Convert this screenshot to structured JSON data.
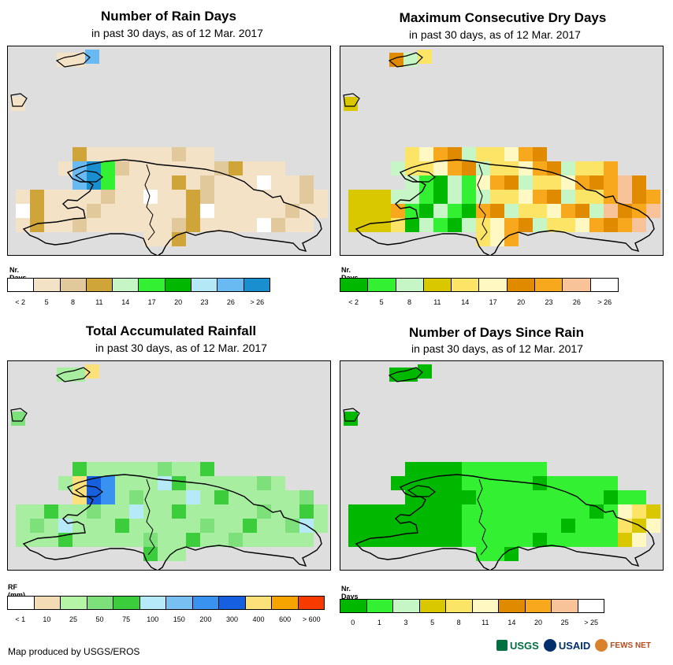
{
  "panels": [
    {
      "title": "Number of Rain Days",
      "subtitle": "in past 30 days, as of 12 Mar. 2017",
      "legend_title": "Nr. Days",
      "legend_labels": [
        "< 2",
        "5",
        "8",
        "11",
        "14",
        "17",
        "20",
        "23",
        "26",
        "> 26"
      ],
      "legend_colors": [
        "#ffffff",
        "#f3e2c6",
        "#e2c99b",
        "#cfa53a",
        "#c6f5c6",
        "#33f033",
        "#00b800",
        "#b5e8f6",
        "#69baf2",
        "#1a8fd0"
      ],
      "land_color": "#e6cfa3"
    },
    {
      "title": "Maximum Consecutive Dry Days",
      "subtitle": "in past 30 days, as of 12 Mar. 2017",
      "legend_title": "Nr. Days",
      "legend_labels": [
        "< 2",
        "5",
        "8",
        "11",
        "14",
        "17",
        "20",
        "23",
        "26",
        "> 26"
      ],
      "legend_colors": [
        "#00b800",
        "#33f033",
        "#c6f5c6",
        "#d9c800",
        "#fce566",
        "#fff8c2",
        "#e08a00",
        "#f7a81c",
        "#f9c39a",
        "#ffffff"
      ],
      "land_color": "#fce566"
    },
    {
      "title": "Total Accumulated Rainfall",
      "subtitle": "in past 30 days, as of 12 Mar. 2017",
      "legend_title": "RF (mm)",
      "legend_labels": [
        "< 1",
        "10",
        "25",
        "50",
        "75",
        "100",
        "150",
        "200",
        "300",
        "400",
        "600",
        "> 600"
      ],
      "legend_colors": [
        "#ffffff",
        "#f3dcb5",
        "#b6f5a5",
        "#7ee07a",
        "#3ccd3c",
        "#b6eaf8",
        "#79c0f2",
        "#3a92f0",
        "#1660e0",
        "#fce07a",
        "#f7a300",
        "#f73a00"
      ],
      "land_color": "#a8eea0"
    },
    {
      "title": "Number of Days Since Rain",
      "subtitle": "in past 30 days, as of 12 Mar. 2017",
      "legend_title": "Nr. Days",
      "legend_labels": [
        "0",
        "1",
        "3",
        "5",
        "8",
        "11",
        "14",
        "20",
        "25",
        "> 25"
      ],
      "legend_colors": [
        "#00b800",
        "#33f033",
        "#c6f5c6",
        "#d9c800",
        "#fce566",
        "#fff8c2",
        "#e08a00",
        "#f7a81c",
        "#f9c39a",
        "#ffffff"
      ],
      "land_color": "#33f033"
    }
  ],
  "footer": {
    "credit": "Map produced by USGS/EROS",
    "logos": [
      "USGS",
      "USAID",
      "FEWS NET"
    ]
  }
}
